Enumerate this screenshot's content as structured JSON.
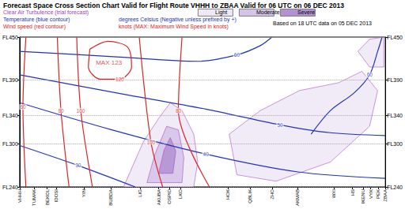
{
  "chart_data": {
    "type": "cross_section",
    "title": "Forecast Space Cross Section Chart Valid for Flight Route VHHH to ZBAA Valid for 06 UTC on 06 DEC 2013",
    "subtitle": "Based on 18 UTC data on 05 DEC 2013",
    "xlim": [
      0,
      100
    ],
    "xticks": [
      {
        "value": 0,
        "label": "VHHH"
      },
      {
        "value": 4,
        "label": "TUMAK"
      },
      {
        "value": 7.5,
        "label": "BEKOL"
      },
      {
        "value": 10,
        "label": "IDOSI"
      },
      {
        "value": 17.5,
        "label": "YIN"
      },
      {
        "value": 25,
        "label": "BUBDA"
      },
      {
        "value": 33,
        "label": "LIG"
      },
      {
        "value": 38,
        "label": "AKUBA"
      },
      {
        "value": 41,
        "label": "OSPID"
      },
      {
        "value": 44,
        "label": "LKO"
      },
      {
        "value": 57,
        "label": "HOK"
      },
      {
        "value": 63,
        "label": "QBLIK"
      },
      {
        "value": 69,
        "label": "ZHO"
      },
      {
        "value": 76,
        "label": "AKMAB"
      },
      {
        "value": 86,
        "label": "WXI"
      },
      {
        "value": 91,
        "label": "HS"
      },
      {
        "value": 94,
        "label": "IKENU"
      },
      {
        "value": 96,
        "label": "VYK"
      },
      {
        "value": 98,
        "label": "PEK"
      },
      {
        "value": 100,
        "label": "ZBAA"
      }
    ],
    "ylim": [
      240,
      450
    ],
    "yticks": [
      {
        "value": 240,
        "label": "FL240"
      },
      {
        "value": 300,
        "label": "FL300"
      },
      {
        "value": 340,
        "label": "FL340"
      },
      {
        "value": 390,
        "label": "FL390"
      },
      {
        "value": 450,
        "label": "FL450"
      }
    ],
    "grid": true,
    "series": [
      {
        "name": "Clear Air Turbulence (trial forecast)",
        "type": "area",
        "color": "#a040c0",
        "levels": [
          {
            "name": "Light",
            "color": "#efe8f6"
          },
          {
            "name": "Moderate",
            "color": "#d6c4e8"
          },
          {
            "name": "Severe",
            "color": "#b593d2"
          }
        ],
        "areas": [
          {
            "level": "Light",
            "points": [
              [
                28.4,
                240
              ],
              [
                33.8,
                303
              ],
              [
                38.0,
                336
              ],
              [
                41.2,
                358
              ],
              [
                44.4,
                347
              ],
              [
                47.6,
                314
              ],
              [
                48.7,
                275
              ],
              [
                47.6,
                240
              ]
            ]
          },
          {
            "level": "Moderate",
            "points": [
              [
                34.8,
                246
              ],
              [
                37.0,
                286
              ],
              [
                40.2,
                325
              ],
              [
                43.4,
                320
              ],
              [
                44.9,
                281
              ],
              [
                44.4,
                246
              ]
            ]
          },
          {
            "level": "Severe",
            "points": [
              [
                38.0,
                259
              ],
              [
                39.5,
                292
              ],
              [
                41.2,
                309
              ],
              [
                42.7,
                290
              ],
              [
                41.9,
                259
              ]
            ]
          },
          {
            "level": "Light",
            "points": [
              [
                57.3,
                314
              ],
              [
                65.8,
                347
              ],
              [
                76.5,
                375
              ],
              [
                87.2,
                386
              ],
              [
                93.6,
                402
              ],
              [
                97.9,
                375
              ],
              [
                95.7,
                325
              ],
              [
                85.0,
                275
              ],
              [
                70.1,
                248
              ],
              [
                59.4,
                257
              ]
            ]
          },
          {
            "level": "Light",
            "points": [
              [
                92.5,
                430
              ],
              [
                95.7,
                447
              ],
              [
                99.6,
                450
              ],
              [
                99.6,
                408
              ],
              [
                95.7,
                408
              ]
            ]
          }
        ]
      },
      {
        "name": "Temperature (blue contour)",
        "type": "contour",
        "color": "#2233bb",
        "unit": "degrees Celsius (Negative unless prefixed by +)",
        "contours": [
          {
            "value": -60,
            "label": "60",
            "points": [
              [
                0,
                430
              ],
              [
                27.4,
                422
              ],
              [
                48.7,
                416
              ],
              [
                59.4,
                425
              ],
              [
                65.8,
                438
              ],
              [
                69.0,
                450
              ]
            ]
          },
          {
            "value": -60,
            "label": "60",
            "points": [
              [
                79.7,
                314
              ],
              [
                85.0,
                347
              ],
              [
                91.5,
                372
              ],
              [
                95.7,
                397
              ],
              [
                97.9,
                430
              ],
              [
                99.1,
                450
              ]
            ]
          },
          {
            "value": -50,
            "label": "50",
            "points": [
              [
                0,
                397
              ],
              [
                29.5,
                369
              ],
              [
                50.9,
                349
              ],
              [
                71.2,
                327
              ],
              [
                85.0,
                316
              ],
              [
                100,
                312
              ]
            ]
          },
          {
            "value": -40,
            "label": "40",
            "points": [
              [
                0,
                358
              ],
              [
                25.2,
                320
              ],
              [
                50.9,
                286
              ],
              [
                76.1,
                261
              ],
              [
                100,
                252
              ]
            ]
          },
          {
            "value": -30,
            "label": "30",
            "points": [
              [
                0,
                298
              ],
              [
                16.0,
                270
              ],
              [
                31.6,
                240
              ]
            ]
          }
        ]
      },
      {
        "name": "Wind speed (red contour)",
        "type": "contour",
        "color": "#dd2222",
        "unit": "knots (MAX: Maximum Wind Speed in knots)",
        "contours": [
          {
            "value": 60,
            "points": [
              [
                1.7,
                450
              ],
              [
                0.9,
                352
              ],
              [
                1.7,
                240
              ]
            ]
          },
          {
            "value": 80,
            "points": [
              [
                10.3,
                450
              ],
              [
                11.3,
                347
              ],
              [
                13.5,
                240
              ]
            ]
          },
          {
            "value": 80,
            "points": [
              [
                44.4,
                450
              ],
              [
                43.4,
                347
              ],
              [
                51.9,
                240
              ]
            ]
          },
          {
            "value": 100,
            "points": [
              [
                15.6,
                450
              ],
              [
                16.7,
                347
              ],
              [
                19.9,
                240
              ]
            ]
          },
          {
            "value": 100,
            "points": [
              [
                32.7,
                450
              ],
              [
                35.9,
                303
              ],
              [
                39.1,
                240
              ]
            ]
          },
          {
            "value": 120,
            "points": [
              [
                19.2,
                433
              ],
              [
                24.1,
                444
              ],
              [
                29.5,
                436
              ],
              [
                30.6,
                408
              ],
              [
                27.4,
                391
              ],
              [
                22.0,
                391
              ],
              [
                18.8,
                408
              ],
              [
                19.2,
                433
              ]
            ]
          }
        ]
      }
    ],
    "annotations": [
      {
        "text": "MAX 123",
        "x": 24.4,
        "y": 414,
        "color": "#dd2222"
      }
    ]
  }
}
